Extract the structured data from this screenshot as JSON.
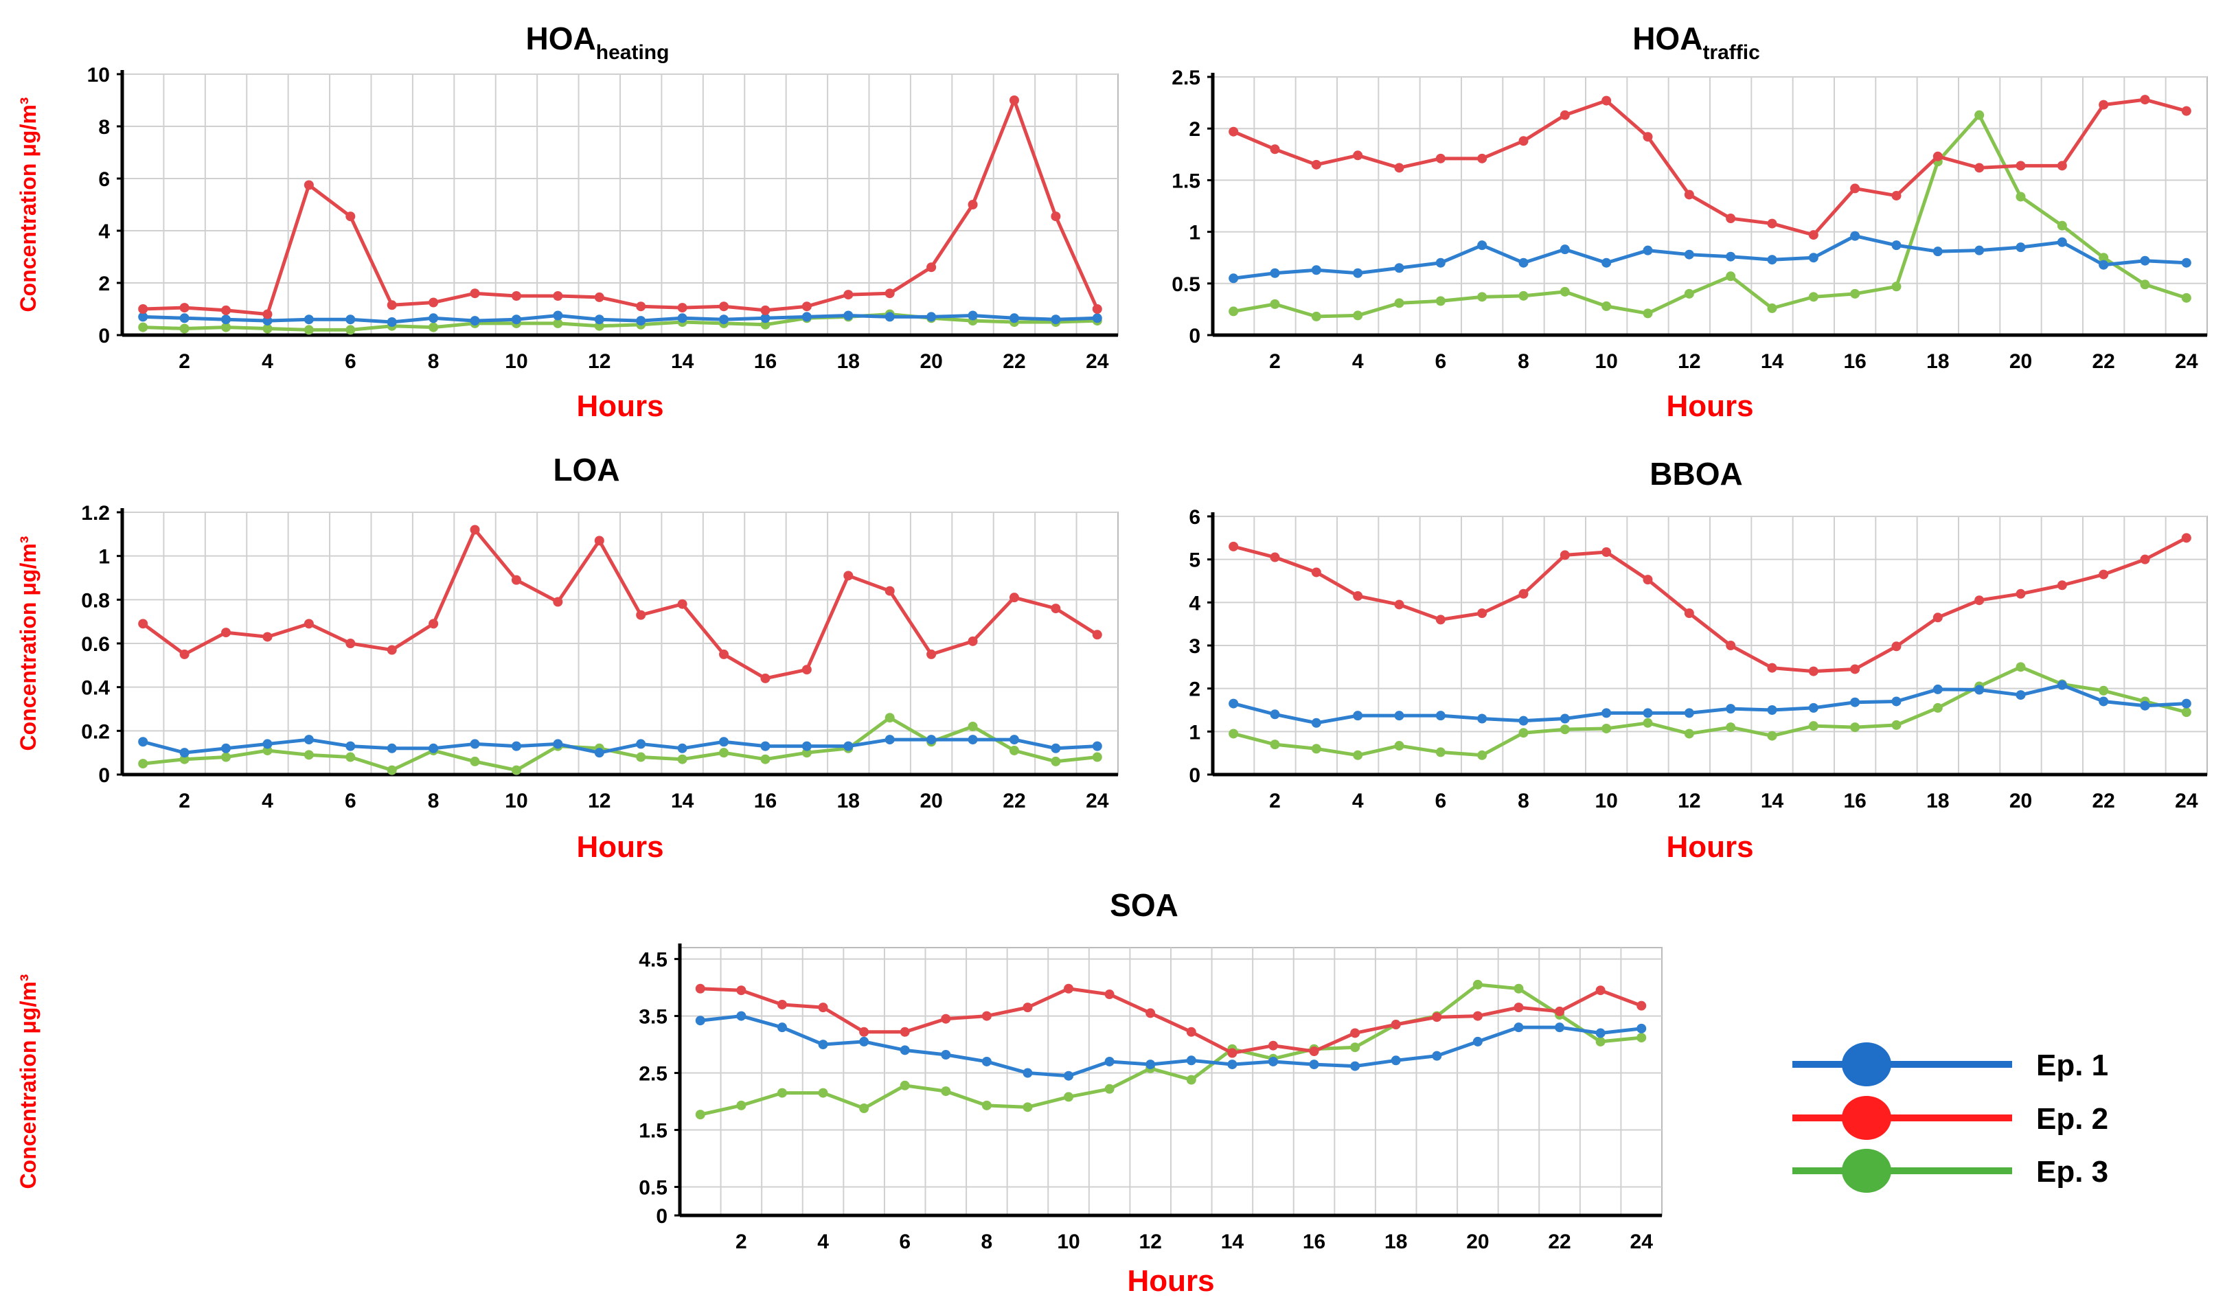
{
  "colors": {
    "ep1": "#2e7fd0",
    "ep2": "#e2484b",
    "ep3": "#86c24e",
    "legend_ep1": "#1f6fc8",
    "legend_ep2": "#ff1d1d",
    "legend_ep3": "#4fb23e",
    "label": "#ff0000"
  },
  "legend": [
    {
      "label": "Ep. 1",
      "color_key": "legend_ep1"
    },
    {
      "label": "Ep. 2",
      "color_key": "legend_ep2"
    },
    {
      "label": "Ep. 3",
      "color_key": "legend_ep3"
    }
  ],
  "chart_data": [
    {
      "type": "line",
      "title": "HOA",
      "title_sub": "heating",
      "xlabel": "Hours",
      "ylabel": "Concentration μg/m³",
      "ylim": [
        0,
        10
      ],
      "yticks": [
        0,
        2,
        4,
        6,
        8,
        10
      ],
      "ytick_labels": [
        "0",
        "2",
        "4",
        "6",
        "8",
        "10"
      ],
      "xticks": [
        2,
        4,
        6,
        8,
        10,
        12,
        14,
        16,
        18,
        20,
        22,
        24
      ],
      "x": [
        1,
        2,
        3,
        4,
        5,
        6,
        7,
        8,
        9,
        10,
        11,
        12,
        13,
        14,
        15,
        16,
        17,
        18,
        19,
        20,
        21,
        22,
        23,
        24
      ],
      "series": [
        {
          "name": "Ep. 1",
          "color_key": "ep1",
          "values": [
            0.7,
            0.65,
            0.6,
            0.55,
            0.6,
            0.6,
            0.5,
            0.65,
            0.55,
            0.6,
            0.75,
            0.6,
            0.55,
            0.65,
            0.6,
            0.65,
            0.7,
            0.75,
            0.7,
            0.7,
            0.75,
            0.65,
            0.6,
            0.65
          ]
        },
        {
          "name": "Ep. 2",
          "color_key": "ep2",
          "values": [
            1.0,
            1.05,
            0.95,
            0.8,
            5.75,
            4.55,
            1.15,
            1.25,
            1.6,
            1.5,
            1.5,
            1.45,
            1.1,
            1.05,
            1.1,
            0.95,
            1.1,
            1.55,
            1.6,
            2.6,
            5.0,
            9.0,
            4.55,
            1.0
          ]
        },
        {
          "name": "Ep. 3",
          "color_key": "ep3",
          "values": [
            0.3,
            0.25,
            0.3,
            0.25,
            0.2,
            0.2,
            0.35,
            0.3,
            0.45,
            0.45,
            0.45,
            0.35,
            0.4,
            0.5,
            0.45,
            0.4,
            0.65,
            0.7,
            0.8,
            0.65,
            0.55,
            0.5,
            0.5,
            0.55
          ]
        }
      ]
    },
    {
      "type": "line",
      "title": "HOA",
      "title_sub": "traffic",
      "xlabel": "Hours",
      "ylabel": "",
      "ylim": [
        0,
        2.5
      ],
      "yticks": [
        0,
        0.5,
        1,
        1.5,
        2,
        2.5
      ],
      "ytick_labels": [
        "0",
        "0.5",
        "1",
        "1.5",
        "2",
        "2.5"
      ],
      "xticks": [
        2,
        4,
        6,
        8,
        10,
        12,
        14,
        16,
        18,
        20,
        22,
        24
      ],
      "x": [
        1,
        2,
        3,
        4,
        5,
        6,
        7,
        8,
        9,
        10,
        11,
        12,
        13,
        14,
        15,
        16,
        17,
        18,
        19,
        20,
        21,
        22,
        23,
        24
      ],
      "series": [
        {
          "name": "Ep. 1",
          "color_key": "ep1",
          "values": [
            0.55,
            0.6,
            0.63,
            0.6,
            0.65,
            0.7,
            0.87,
            0.7,
            0.83,
            0.7,
            0.82,
            0.78,
            0.76,
            0.73,
            0.75,
            0.96,
            0.87,
            0.81,
            0.82,
            0.85,
            0.9,
            0.68,
            0.72,
            0.7
          ]
        },
        {
          "name": "Ep. 2",
          "color_key": "ep2",
          "values": [
            1.97,
            1.8,
            1.65,
            1.74,
            1.62,
            1.71,
            1.71,
            1.88,
            2.13,
            2.27,
            1.92,
            1.36,
            1.13,
            1.08,
            0.97,
            1.42,
            1.35,
            1.73,
            1.62,
            1.64,
            1.64,
            2.23,
            2.28,
            2.17
          ]
        },
        {
          "name": "Ep. 3",
          "color_key": "ep3",
          "values": [
            0.23,
            0.3,
            0.18,
            0.19,
            0.31,
            0.33,
            0.37,
            0.38,
            0.42,
            0.28,
            0.21,
            0.4,
            0.57,
            0.26,
            0.37,
            0.4,
            0.47,
            1.68,
            2.13,
            1.34,
            1.06,
            0.75,
            0.49,
            0.36
          ]
        }
      ]
    },
    {
      "type": "line",
      "title": "LOA",
      "title_sub": "",
      "xlabel": "Hours",
      "ylabel": "Concentration μg/m³",
      "ylim": [
        0,
        1.2
      ],
      "yticks": [
        0,
        0.2,
        0.4,
        0.6,
        0.8,
        1,
        1.2
      ],
      "ytick_labels": [
        "0",
        "0.2",
        "0.4",
        "0.6",
        "0.8",
        "1",
        "1.2"
      ],
      "xticks": [
        2,
        4,
        6,
        8,
        10,
        12,
        14,
        16,
        18,
        20,
        22,
        24
      ],
      "x": [
        1,
        2,
        3,
        4,
        5,
        6,
        7,
        8,
        9,
        10,
        11,
        12,
        13,
        14,
        15,
        16,
        17,
        18,
        19,
        20,
        21,
        22,
        23,
        24
      ],
      "series": [
        {
          "name": "Ep. 1",
          "color_key": "ep1",
          "values": [
            0.15,
            0.1,
            0.12,
            0.14,
            0.16,
            0.13,
            0.12,
            0.12,
            0.14,
            0.13,
            0.14,
            0.1,
            0.14,
            0.12,
            0.15,
            0.13,
            0.13,
            0.13,
            0.16,
            0.16,
            0.16,
            0.16,
            0.12,
            0.13
          ]
        },
        {
          "name": "Ep. 2",
          "color_key": "ep2",
          "values": [
            0.69,
            0.55,
            0.65,
            0.63,
            0.69,
            0.6,
            0.57,
            0.69,
            1.12,
            0.89,
            0.79,
            1.07,
            0.73,
            0.78,
            0.55,
            0.44,
            0.48,
            0.91,
            0.84,
            0.55,
            0.61,
            0.81,
            0.76,
            0.64
          ]
        },
        {
          "name": "Ep. 3",
          "color_key": "ep3",
          "values": [
            0.05,
            0.07,
            0.08,
            0.11,
            0.09,
            0.08,
            0.02,
            0.11,
            0.06,
            0.02,
            0.13,
            0.12,
            0.08,
            0.07,
            0.1,
            0.07,
            0.1,
            0.12,
            0.26,
            0.15,
            0.22,
            0.11,
            0.06,
            0.08
          ]
        }
      ]
    },
    {
      "type": "line",
      "title": "BBOA",
      "title_sub": "",
      "xlabel": "Hours",
      "ylabel": "",
      "ylim": [
        0,
        6
      ],
      "yticks": [
        0,
        1,
        2,
        3,
        4,
        5,
        6
      ],
      "ytick_labels": [
        "0",
        "1",
        "2",
        "3",
        "4",
        "5",
        "6"
      ],
      "xticks": [
        2,
        4,
        6,
        8,
        10,
        12,
        14,
        16,
        18,
        20,
        22,
        24
      ],
      "x": [
        1,
        2,
        3,
        4,
        5,
        6,
        7,
        8,
        9,
        10,
        11,
        12,
        13,
        14,
        15,
        16,
        17,
        18,
        19,
        20,
        21,
        22,
        23,
        24
      ],
      "series": [
        {
          "name": "Ep. 1",
          "color_key": "ep1",
          "values": [
            1.65,
            1.4,
            1.2,
            1.37,
            1.37,
            1.37,
            1.3,
            1.25,
            1.3,
            1.43,
            1.43,
            1.43,
            1.53,
            1.5,
            1.55,
            1.68,
            1.7,
            1.98,
            1.97,
            1.85,
            2.08,
            1.7,
            1.6,
            1.65
          ]
        },
        {
          "name": "Ep. 2",
          "color_key": "ep2",
          "values": [
            5.3,
            5.05,
            4.7,
            4.15,
            3.95,
            3.6,
            3.75,
            4.2,
            5.1,
            5.17,
            4.53,
            3.75,
            3.0,
            2.48,
            2.4,
            2.45,
            2.98,
            3.65,
            4.05,
            4.2,
            4.4,
            4.65,
            5.0,
            5.5
          ]
        },
        {
          "name": "Ep. 3",
          "color_key": "ep3",
          "values": [
            0.95,
            0.7,
            0.6,
            0.45,
            0.67,
            0.52,
            0.45,
            0.97,
            1.05,
            1.07,
            1.2,
            0.95,
            1.1,
            0.9,
            1.13,
            1.1,
            1.15,
            1.55,
            2.05,
            2.5,
            2.1,
            1.95,
            1.7,
            1.45
          ]
        }
      ]
    },
    {
      "type": "line",
      "title": "SOA",
      "title_sub": "",
      "xlabel": "Hours",
      "ylabel": "Concentration μg/m³",
      "ylim": [
        0,
        4.7
      ],
      "yticks": [
        0,
        0.5,
        1.5,
        2.5,
        3.5,
        4.5
      ],
      "ytick_labels": [
        "0",
        "0.5",
        "1.5",
        "2.5",
        "3.5",
        "4.5"
      ],
      "xticks": [
        2,
        4,
        6,
        8,
        10,
        12,
        14,
        16,
        18,
        20,
        22,
        24
      ],
      "x": [
        1,
        2,
        3,
        4,
        5,
        6,
        7,
        8,
        9,
        10,
        11,
        12,
        13,
        14,
        15,
        16,
        17,
        18,
        19,
        20,
        21,
        22,
        23,
        24
      ],
      "series": [
        {
          "name": "Ep. 1",
          "color_key": "ep1",
          "values": [
            3.42,
            3.5,
            3.3,
            3.0,
            3.05,
            2.9,
            2.82,
            2.7,
            2.5,
            2.45,
            2.7,
            2.65,
            2.72,
            2.65,
            2.7,
            2.65,
            2.62,
            2.72,
            2.8,
            3.05,
            3.3,
            3.3,
            3.2,
            3.28
          ]
        },
        {
          "name": "Ep. 2",
          "color_key": "ep2",
          "values": [
            3.98,
            3.95,
            3.7,
            3.65,
            3.22,
            3.22,
            3.45,
            3.5,
            3.65,
            3.98,
            3.88,
            3.55,
            3.22,
            2.85,
            2.98,
            2.88,
            3.2,
            3.35,
            3.48,
            3.5,
            3.65,
            3.58,
            3.95,
            3.68
          ]
        },
        {
          "name": "Ep. 3",
          "color_key": "ep3",
          "values": [
            1.77,
            1.93,
            2.15,
            2.15,
            1.88,
            2.28,
            2.18,
            1.93,
            1.9,
            2.08,
            2.22,
            2.58,
            2.38,
            2.92,
            2.75,
            2.92,
            2.95,
            3.35,
            3.5,
            4.05,
            3.98,
            3.52,
            3.05,
            3.12
          ]
        }
      ]
    }
  ]
}
